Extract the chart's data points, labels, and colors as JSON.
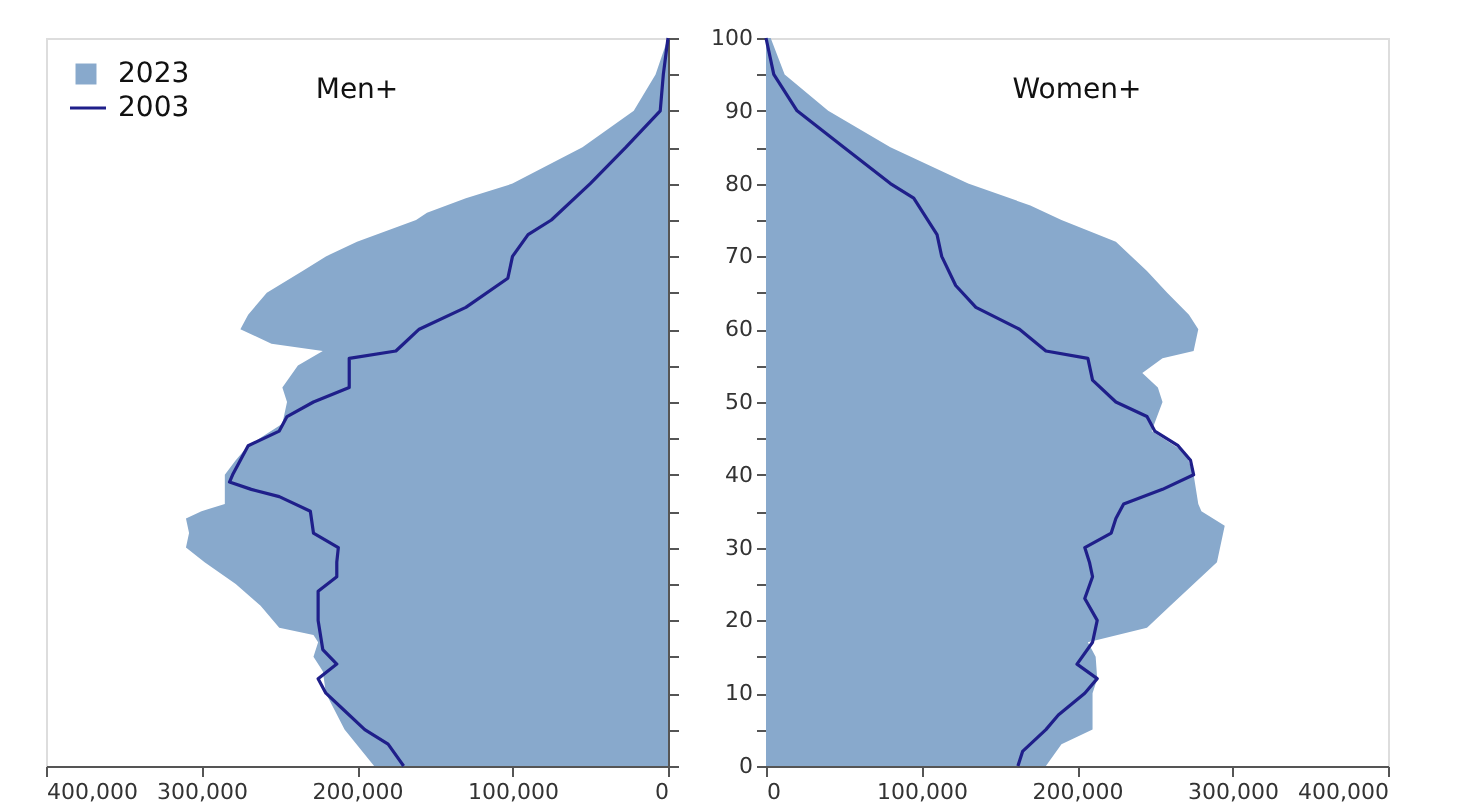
{
  "chart_data": [
    {
      "type": "area",
      "title": "Men+",
      "orientation": "horizontal",
      "xlim": [
        400000,
        0
      ],
      "xticks": [
        {
          "value": 400000,
          "label": "400,000"
        },
        {
          "value": 300000,
          "label": "300,000"
        },
        {
          "value": 200000,
          "label": "200,000"
        },
        {
          "value": 100000,
          "label": "100,000"
        },
        0
      ],
      "ylim": [
        0,
        100
      ],
      "yticks": [
        0,
        {
          "value": 5,
          "label": null
        },
        10,
        {
          "value": 15,
          "label": null
        },
        20,
        {
          "value": 25,
          "label": null
        },
        30,
        {
          "value": 35,
          "label": null
        },
        40,
        {
          "value": 45,
          "label": null
        },
        50,
        {
          "value": 55,
          "label": null
        },
        60,
        {
          "value": 65,
          "label": null
        },
        70,
        {
          "value": 75,
          "label": null
        },
        80,
        {
          "value": 85,
          "label": null
        },
        90,
        {
          "value": 95,
          "label": null
        },
        100
      ],
      "tick_labels": "x",
      "grid": false,
      "legend": "top left",
      "series": [
        {
          "name": "2023",
          "color": "#88a9cc",
          "x": [
            0,
            5,
            10,
            13,
            15,
            17,
            18,
            19,
            22,
            25,
            28,
            30,
            32,
            34,
            35,
            36,
            40,
            42,
            44,
            47,
            50,
            52,
            55,
            57,
            58,
            60,
            62,
            65,
            68,
            70,
            72,
            75,
            76,
            78,
            80,
            85,
            90,
            95,
            100
          ],
          "values": [
            189000,
            208000,
            220000,
            222000,
            228000,
            225000,
            228000,
            250000,
            262000,
            278000,
            298000,
            310000,
            308000,
            310000,
            300000,
            285000,
            285000,
            278000,
            270000,
            248000,
            245000,
            248000,
            238000,
            222000,
            255000,
            275000,
            270000,
            258000,
            235000,
            220000,
            200000,
            162000,
            155000,
            130000,
            100000,
            55000,
            22000,
            8000,
            0
          ]
        },
        {
          "name": "2003",
          "type": "line",
          "color": "#1f1f8a",
          "x": [
            0,
            3,
            5,
            8,
            10,
            12,
            14,
            16,
            20,
            24,
            26,
            28,
            30,
            32,
            35,
            37,
            38,
            39,
            40,
            42,
            44,
            46,
            48,
            50,
            52,
            56,
            57,
            58,
            60,
            63,
            67,
            70,
            73,
            75,
            80,
            85,
            90,
            95,
            100
          ],
          "values": [
            170000,
            180000,
            195000,
            210000,
            220000,
            225000,
            213000,
            222000,
            225000,
            225000,
            213000,
            213000,
            212000,
            228000,
            230000,
            250000,
            268000,
            282000,
            280000,
            275000,
            270000,
            250000,
            245000,
            228000,
            205000,
            205000,
            175000,
            170000,
            160000,
            130000,
            103000,
            100000,
            90000,
            75000,
            50000,
            27000,
            5000,
            3000,
            0
          ]
        }
      ]
    },
    {
      "type": "area",
      "title": "Women+",
      "orientation": "horizontal",
      "xlim": [
        0,
        400000
      ],
      "xticks": [
        0,
        {
          "value": 100000,
          "label": "100,000"
        },
        {
          "value": 200000,
          "label": "200,000"
        },
        {
          "value": 300000,
          "label": "300,000"
        },
        {
          "value": 400000,
          "label": "400,000"
        }
      ],
      "ylim": [
        0,
        100
      ],
      "yticks": [
        0,
        {
          "value": 5,
          "label": null
        },
        10,
        {
          "value": 15,
          "label": null
        },
        20,
        {
          "value": 25,
          "label": null
        },
        30,
        {
          "value": 35,
          "label": null
        },
        40,
        {
          "value": 45,
          "label": null
        },
        50,
        {
          "value": 55,
          "label": null
        },
        60,
        {
          "value": 65,
          "label": null
        },
        70,
        {
          "value": 75,
          "label": null
        },
        80,
        {
          "value": 85,
          "label": null
        },
        90,
        {
          "value": 95,
          "label": null
        },
        100
      ],
      "grid": false,
      "series": [
        {
          "color": "#88a9cc",
          "x": [
            0,
            3,
            5,
            10,
            12,
            15,
            17,
            19,
            22,
            25,
            28,
            33,
            35,
            36,
            40,
            43,
            46,
            50,
            52,
            54,
            56,
            57,
            60,
            62,
            65,
            68,
            72,
            75,
            77,
            80,
            85,
            90,
            95,
            100
          ],
          "values": [
            180000,
            190000,
            210000,
            210000,
            213000,
            212000,
            207000,
            245000,
            260000,
            275000,
            290000,
            295000,
            280000,
            278000,
            275000,
            270000,
            248000,
            255000,
            252000,
            242000,
            255000,
            275000,
            278000,
            272000,
            258000,
            245000,
            225000,
            190000,
            170000,
            130000,
            80000,
            40000,
            12000,
            3000
          ]
        },
        {
          "type": "line",
          "color": "#1f1f8a",
          "x": [
            0,
            2,
            5,
            7,
            10,
            12,
            14,
            17,
            20,
            23,
            26,
            28,
            30,
            32,
            34,
            36,
            38,
            40,
            42,
            44,
            46,
            48,
            50,
            53,
            56,
            57,
            60,
            63,
            66,
            70,
            73,
            78,
            80,
            85,
            90,
            95,
            100
          ],
          "values": [
            162000,
            165000,
            180000,
            188000,
            205000,
            213000,
            200000,
            210000,
            213000,
            205000,
            210000,
            208000,
            205000,
            222000,
            225000,
            230000,
            255000,
            275000,
            273000,
            265000,
            250000,
            245000,
            225000,
            210000,
            207000,
            180000,
            163000,
            135000,
            122000,
            113000,
            110000,
            95000,
            80000,
            50000,
            20000,
            5000,
            0
          ]
        }
      ]
    }
  ]
}
